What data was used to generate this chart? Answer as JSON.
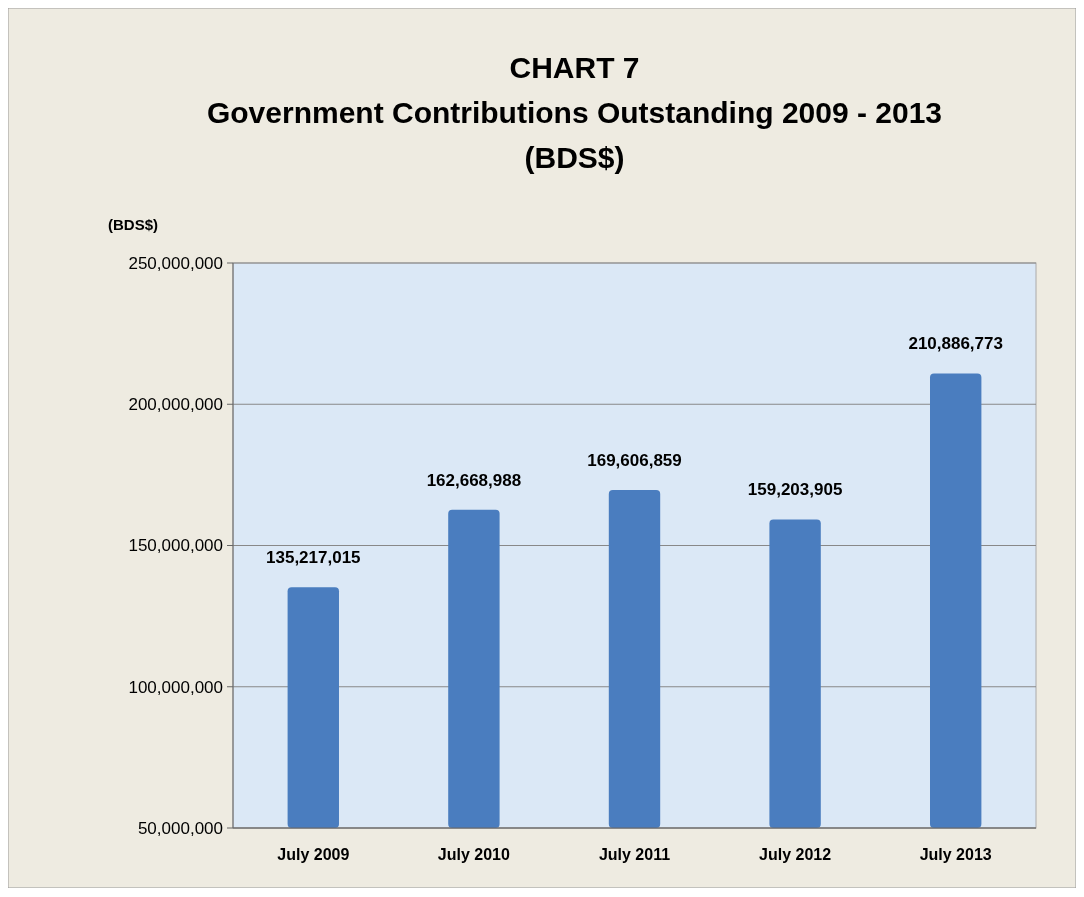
{
  "chart_data": {
    "type": "bar",
    "title": "CHART 7\nGovernment Contributions Outstanding  2009 - 2013\n(BDS$)",
    "ylabel": "(BDS$)",
    "categories": [
      "July 2009",
      "July 2010",
      "July 2011",
      "July 2012",
      "July 2013"
    ],
    "values": [
      135217015,
      162668988,
      169606859,
      159203905,
      210886773
    ],
    "color": "#4a7dbf",
    "ylim": [
      50000000,
      250000000
    ],
    "yticks": [
      {
        "value": 50000000,
        "label": "50,000,000"
      },
      {
        "value": 100000000,
        "label": "100,000,000"
      },
      {
        "value": 150000000,
        "label": "150,000,000"
      },
      {
        "value": 200000000,
        "label": "200,000,000"
      },
      {
        "value": 250000000,
        "label": "250,000,000"
      }
    ],
    "value_labels": [
      "135,217,015",
      "162,668,988",
      "169,606,859",
      "159,203,905",
      "210,886,773"
    ],
    "grid": "y"
  }
}
